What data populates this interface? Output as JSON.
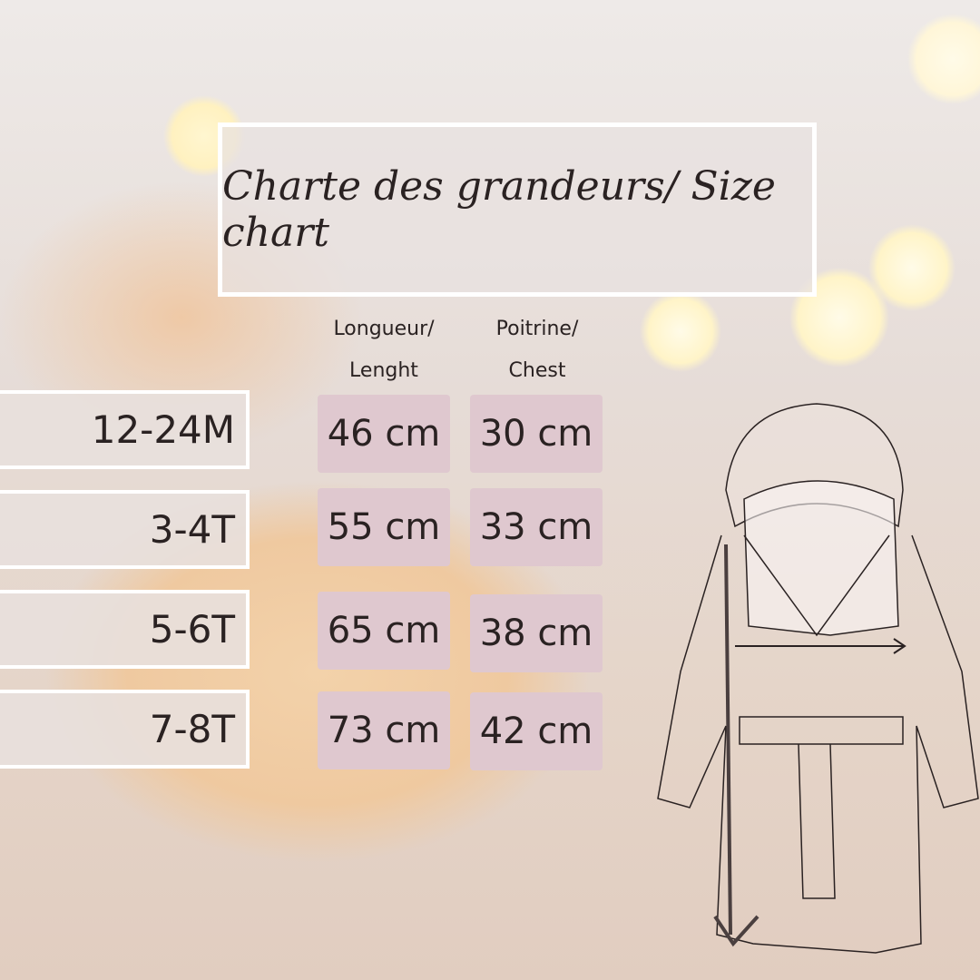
{
  "title": "Charte des grandeurs/ Size chart",
  "headers": {
    "length": "Longueur/ Lenght",
    "chest": "Poitrine/ Chest"
  },
  "rows": [
    {
      "size": "12-24M",
      "length": "46 cm",
      "chest": "30 cm"
    },
    {
      "size": "3-4T",
      "length": "55 cm",
      "chest": "33 cm"
    },
    {
      "size": "5-6T",
      "length": "65 cm",
      "chest": "38 cm"
    },
    {
      "size": "7-8T",
      "length": "73 cm",
      "chest": "42 cm"
    }
  ]
}
